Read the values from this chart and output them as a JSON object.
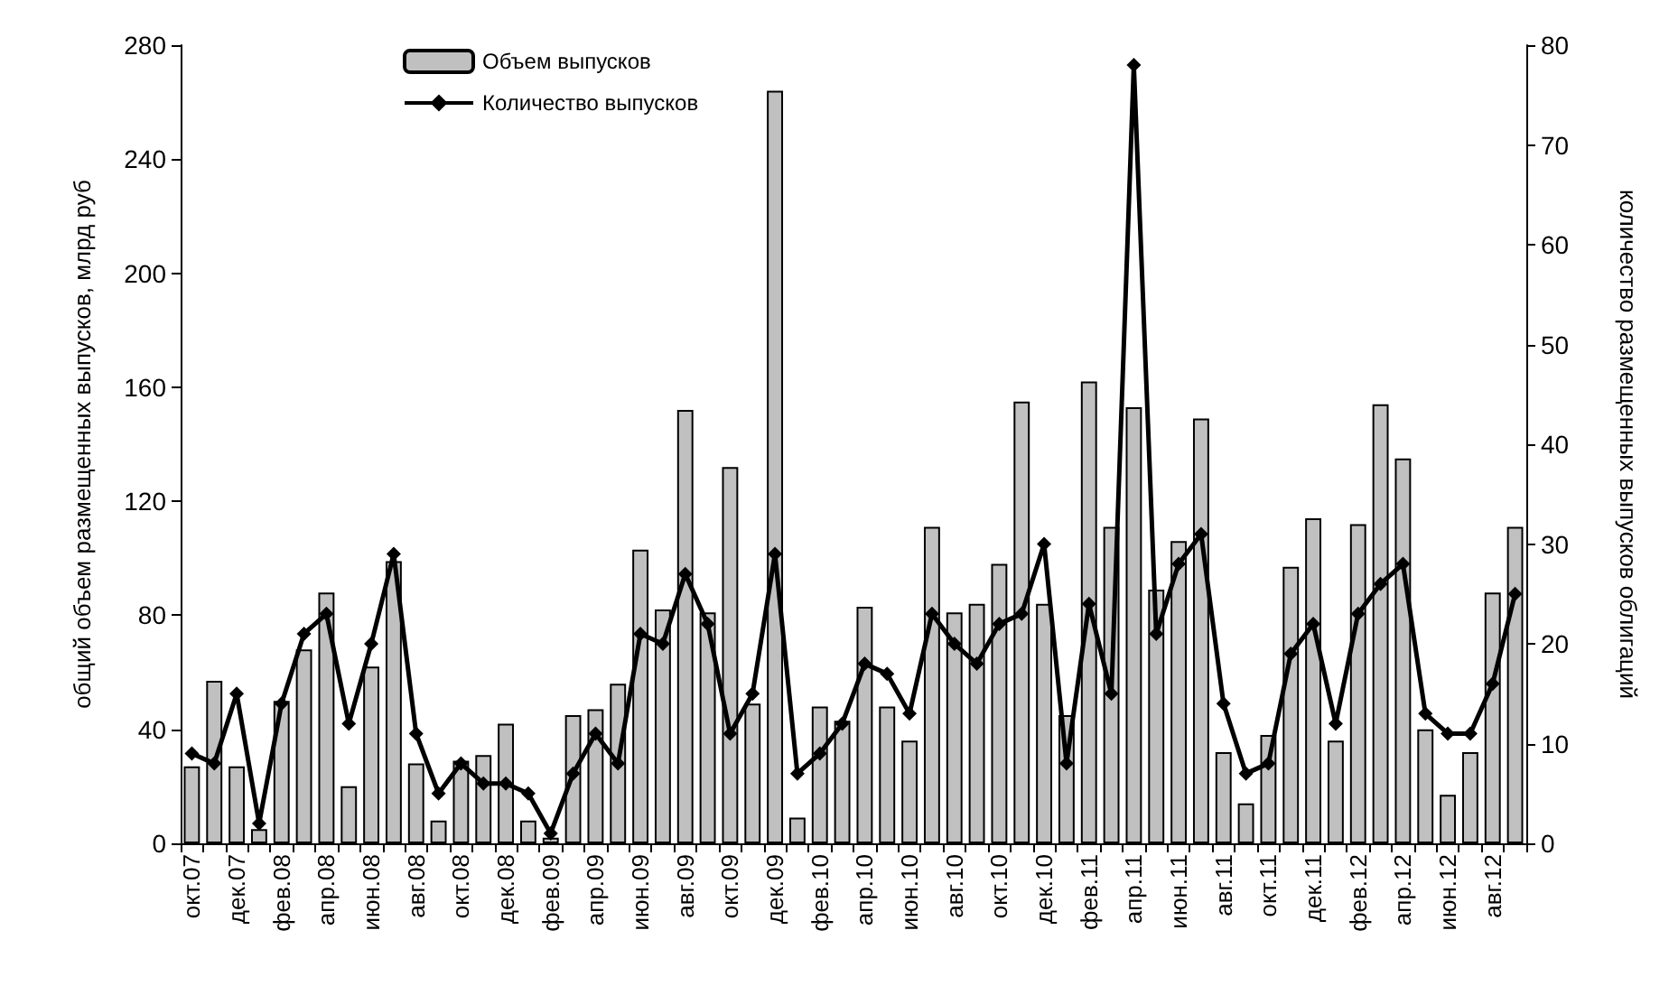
{
  "chart_data": {
    "type": "bar",
    "ylabel": "общий объем размещенных выпусков, млрд руб",
    "y2label": "количество размещенных выпусков облигаций",
    "categories": [
      "окт.07",
      null,
      "дек.07",
      null,
      "фев.08",
      null,
      "апр.08",
      null,
      "июн.08",
      null,
      "авг.08",
      null,
      "окт.08",
      null,
      "дек.08",
      null,
      "фев.09",
      null,
      "апр.09",
      null,
      "июн.09",
      null,
      "авг.09",
      null,
      "окт.09",
      null,
      "дек.09",
      null,
      "фев.10",
      null,
      "апр.10",
      null,
      "июн.10",
      null,
      "авг.10",
      null,
      "окт.10",
      null,
      "дек.10",
      null,
      "фев.11",
      null,
      "апр.11",
      null,
      "июн.11",
      null,
      "авг.11",
      null,
      "окт.11",
      null,
      "дек.11",
      null,
      "фев.12",
      null,
      "апр.12",
      null,
      "июн.12",
      null,
      "авг.12",
      null
    ],
    "series": [
      {
        "name": "Объем выпусков",
        "color": "#c0c0c0",
        "values": [
          27,
          57,
          27,
          5,
          50,
          68,
          88,
          20,
          62,
          99,
          28,
          8,
          29,
          31,
          42,
          8,
          2,
          45,
          47,
          56,
          103,
          82,
          152,
          81,
          132,
          49,
          264,
          9,
          48,
          43,
          83,
          48,
          36,
          111,
          81,
          84,
          98,
          155,
          84,
          45,
          162,
          111,
          153,
          89,
          106,
          149,
          32,
          14,
          38,
          97,
          114,
          36,
          112,
          154,
          135,
          40,
          17,
          32,
          88,
          111
        ]
      },
      {
        "name": "Количество выпусков",
        "type": "line",
        "axis": "y2",
        "color": "#000000",
        "values": [
          9,
          8,
          15,
          2,
          14,
          21,
          23,
          12,
          20,
          29,
          11,
          5,
          8,
          6,
          6,
          5,
          1,
          7,
          11,
          8,
          21,
          20,
          27,
          22,
          11,
          15,
          29,
          7,
          9,
          12,
          18,
          17,
          13,
          23,
          20,
          18,
          22,
          23,
          30,
          8,
          24,
          15,
          78,
          21,
          28,
          31,
          14,
          7,
          8,
          19,
          22,
          12,
          23,
          26,
          28,
          13,
          11,
          11,
          16,
          25
        ]
      }
    ],
    "ylim": [
      0,
      280
    ],
    "yticks": [
      0,
      40,
      80,
      120,
      160,
      200,
      240,
      280
    ],
    "y2lim": [
      0,
      80
    ],
    "y2ticks": [
      0,
      10,
      20,
      30,
      40,
      50,
      60,
      70,
      80
    ],
    "legend": "top left",
    "grid": false,
    "marker": "diamond",
    "line_style": "solid"
  }
}
